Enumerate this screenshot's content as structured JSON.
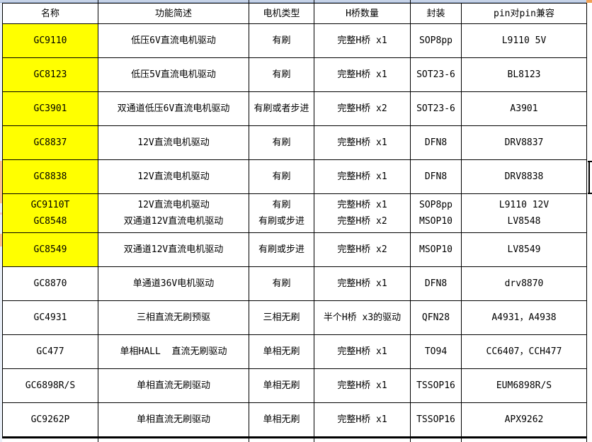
{
  "top_strip": {
    "strip_color": "#c6d3e8",
    "strip_edge_color": "#9ab1d3",
    "corner_color": "#f0a053"
  },
  "colors": {
    "highlight_yellow": "#ffff00",
    "grid_line": "#000000",
    "sliver_orange": "#fabf8f"
  },
  "table": {
    "headers": [
      "名称",
      "功能简述",
      "电机类型",
      "H桥数量",
      "封装",
      "pin对pin兼容"
    ],
    "column_keys": [
      "name",
      "desc",
      "motor",
      "bridge",
      "package",
      "pin"
    ],
    "rows": [
      {
        "name": [
          "GC9110"
        ],
        "desc": [
          "低压6V直流电机驱动"
        ],
        "motor": [
          "有刷"
        ],
        "bridge": [
          "完整H桥 x1"
        ],
        "package": [
          "SOP8pp"
        ],
        "pin": [
          "L9110 5V"
        ],
        "highlight": true
      },
      {
        "name": [
          "GC8123"
        ],
        "desc": [
          "低压5V直流电机驱动"
        ],
        "motor": [
          "有刷"
        ],
        "bridge": [
          "完整H桥 x1"
        ],
        "package": [
          "SOT23-6"
        ],
        "pin": [
          "BL8123"
        ],
        "highlight": true
      },
      {
        "name": [
          "GC3901"
        ],
        "desc": [
          "双通道低压6V直流电机驱动"
        ],
        "motor": [
          "有刷或者步进"
        ],
        "bridge": [
          "完整H桥 x2"
        ],
        "package": [
          "SOT23-6"
        ],
        "pin": [
          "A3901"
        ],
        "highlight": true
      },
      {
        "name": [
          "GC8837"
        ],
        "desc": [
          "12V直流电机驱动"
        ],
        "motor": [
          "有刷"
        ],
        "bridge": [
          "完整H桥 x1"
        ],
        "package": [
          "DFN8"
        ],
        "pin": [
          "DRV8837"
        ],
        "highlight": true
      },
      {
        "name": [
          "GC8838"
        ],
        "desc": [
          "12V直流电机驱动"
        ],
        "motor": [
          "有刷"
        ],
        "bridge": [
          "完整H桥 x1"
        ],
        "package": [
          "DFN8"
        ],
        "pin": [
          "DRV8838"
        ],
        "highlight": true
      },
      {
        "name": [
          "GC9110T",
          "GC8548"
        ],
        "desc": [
          "12V直流电机驱动",
          "双通道12V直流电机驱动"
        ],
        "motor": [
          "有刷",
          "有刷或步进"
        ],
        "bridge": [
          "完整H桥 x1",
          "完整H桥 x2"
        ],
        "package": [
          "SOP8pp",
          "MSOP10"
        ],
        "pin": [
          "L9110 12V",
          "LV8548"
        ],
        "highlight": true
      },
      {
        "name": [
          "GC8549"
        ],
        "desc": [
          "双通道12V直流电机驱动"
        ],
        "motor": [
          "有刷或步进"
        ],
        "bridge": [
          "完整H桥 x2"
        ],
        "package": [
          "MSOP10"
        ],
        "pin": [
          "LV8549"
        ],
        "highlight": true
      },
      {
        "name": [
          "GC8870"
        ],
        "desc": [
          "单通道36V电机驱动"
        ],
        "motor": [
          "有刷"
        ],
        "bridge": [
          "完整H桥 x1"
        ],
        "package": [
          "DFN8"
        ],
        "pin": [
          "drv8870"
        ],
        "highlight": false
      },
      {
        "name": [
          "GC4931"
        ],
        "desc": [
          "三相直流无刷预驱"
        ],
        "motor": [
          "三相无刷"
        ],
        "bridge": [
          "半个H桥 x3的驱动"
        ],
        "package": [
          "QFN28"
        ],
        "pin": [
          "A4931，A4938"
        ],
        "highlight": false
      },
      {
        "name": [
          "GC477"
        ],
        "desc": [
          "单相HALL  直流无刷驱动"
        ],
        "motor": [
          "单相无刷"
        ],
        "bridge": [
          "完整H桥 x1"
        ],
        "package": [
          "TO94"
        ],
        "pin": [
          "CC6407，CCH477"
        ],
        "highlight": false
      },
      {
        "name": [
          "GC6898R/S"
        ],
        "desc": [
          "单相直流无刷驱动"
        ],
        "motor": [
          "单相无刷"
        ],
        "bridge": [
          "完整H桥 x1"
        ],
        "package": [
          "TSSOP16"
        ],
        "pin": [
          "EUM6898R/S"
        ],
        "highlight": false
      },
      {
        "name": [
          "GC9262P"
        ],
        "desc": [
          "单相直流无刷驱动"
        ],
        "motor": [
          "单相无刷"
        ],
        "bridge": [
          "完整H桥 x1"
        ],
        "package": [
          "TSSOP16"
        ],
        "pin": [
          "APX9262"
        ],
        "highlight": false
      }
    ]
  }
}
